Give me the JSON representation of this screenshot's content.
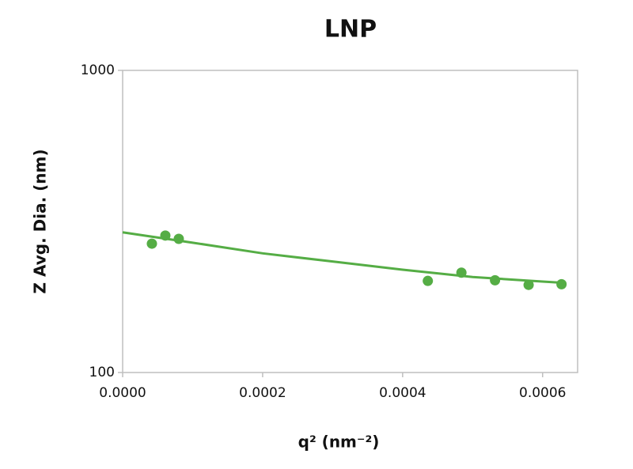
{
  "chart_data": {
    "type": "scatter",
    "title": "LNP",
    "x_label": "q² (nm⁻²)",
    "y_label": "Z Avg. Dia. (nm)",
    "xlim": [
      0,
      0.00065
    ],
    "xticks": [
      {
        "value": 0,
        "label": "0.0000"
      },
      {
        "value": 0.0002,
        "label": "0.0002"
      },
      {
        "value": 0.0004,
        "label": "0.0004"
      },
      {
        "value": 0.0006,
        "label": "0.0006"
      }
    ],
    "ylim": [
      100,
      1000
    ],
    "yticks": [
      100,
      1000
    ],
    "y_scale": "log",
    "grid": false,
    "series": [
      {
        "mode": "markers",
        "color": "#55ad45",
        "x": [
          4.18e-05,
          6.1e-05,
          8.02e-05,
          0.000436,
          0.000484,
          0.000532,
          0.00058,
          0.000627
        ],
        "values": [
          267,
          284,
          277,
          201,
          214,
          202,
          195,
          196
        ]
      },
      {
        "mode": "line",
        "color": "#55ad45",
        "x": [
          0,
          0.0001,
          0.0002,
          0.0003,
          0.0004,
          0.0005,
          0.0006,
          0.00063
        ],
        "values": [
          291,
          269,
          248,
          233,
          219,
          207,
          200,
          198
        ]
      }
    ]
  }
}
